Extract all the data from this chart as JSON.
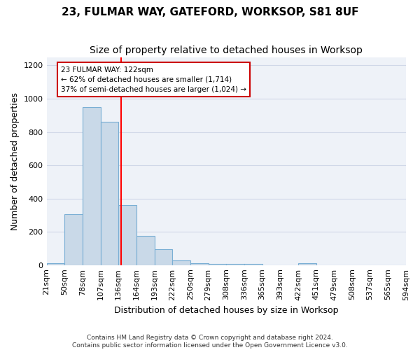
{
  "title": "23, FULMAR WAY, GATEFORD, WORKSOP, S81 8UF",
  "subtitle": "Size of property relative to detached houses in Worksop",
  "xlabel": "Distribution of detached houses by size in Worksop",
  "ylabel": "Number of detached properties",
  "bin_labels": [
    "21sqm",
    "50sqm",
    "78sqm",
    "107sqm",
    "136sqm",
    "164sqm",
    "193sqm",
    "222sqm",
    "250sqm",
    "279sqm",
    "308sqm",
    "336sqm",
    "365sqm",
    "393sqm",
    "422sqm",
    "451sqm",
    "479sqm",
    "508sqm",
    "537sqm",
    "565sqm",
    "594sqm"
  ],
  "bar_values": [
    10,
    305,
    950,
    860,
    360,
    175,
    95,
    30,
    10,
    5,
    5,
    5,
    0,
    0,
    10,
    0,
    0,
    0,
    0,
    0
  ],
  "bar_color": "#c9d9e8",
  "bar_edge_color": "#7aafd4",
  "red_line_x": 3.65,
  "annotation_text": "23 FULMAR WAY: 122sqm\n← 62% of detached houses are smaller (1,714)\n37% of semi-detached houses are larger (1,024) →",
  "annotation_box_color": "#cc0000",
  "ylim": [
    0,
    1250
  ],
  "yticks": [
    0,
    200,
    400,
    600,
    800,
    1000,
    1200
  ],
  "footer_line1": "Contains HM Land Registry data © Crown copyright and database right 2024.",
  "footer_line2": "Contains public sector information licensed under the Open Government Licence v3.0.",
  "grid_color": "#d0d8e8",
  "bg_color": "#eef2f8",
  "title_fontsize": 11,
  "subtitle_fontsize": 10,
  "axis_label_fontsize": 9,
  "tick_fontsize": 8
}
